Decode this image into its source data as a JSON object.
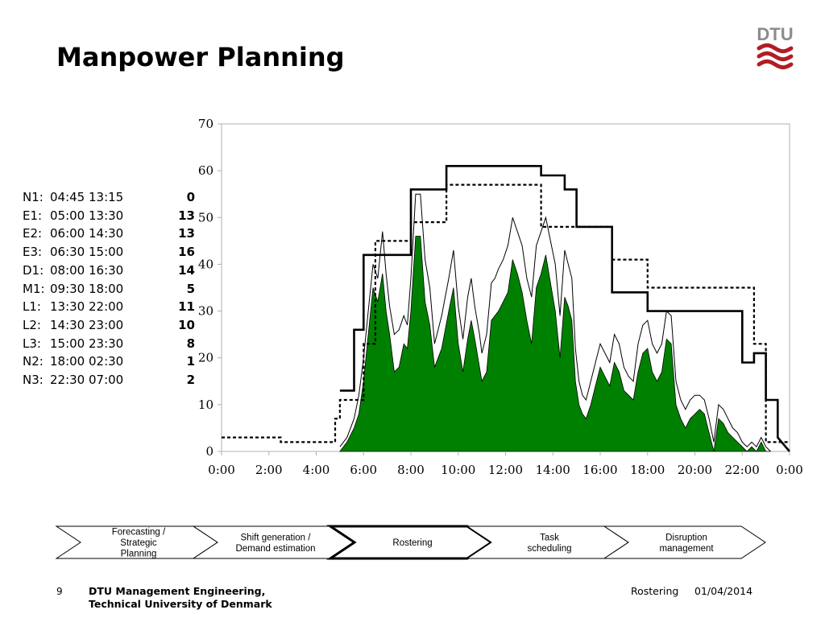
{
  "slide": {
    "title": "Manpower Planning",
    "logo_text": "DTU",
    "colors": {
      "logo_red": "#b01e24",
      "logo_grey": "#8c8c8c",
      "area_fill": "#008000",
      "step_border": "#000000"
    }
  },
  "shifts": [
    {
      "label": "N1:",
      "time": "04:45 13:15",
      "count": "0"
    },
    {
      "label": "E1:",
      "time": "05:00 13:30",
      "count": "13"
    },
    {
      "label": "E2:",
      "time": "06:00 14:30",
      "count": "13"
    },
    {
      "label": "E3:",
      "time": "06:30 15:00",
      "count": "16"
    },
    {
      "label": "D1:",
      "time": "08:00 16:30",
      "count": "14"
    },
    {
      "label": "M1:",
      "time": "09:30 18:00",
      "count": "5"
    },
    {
      "label": "L1:",
      "time": "13:30 22:00",
      "count": "11"
    },
    {
      "label": "L2:",
      "time": "14:30 23:00",
      "count": "10"
    },
    {
      "label": "L3:",
      "time": "15:00 23:30",
      "count": "8"
    },
    {
      "label": "N2:",
      "time": "18:00 02:30",
      "count": "1"
    },
    {
      "label": "N3:",
      "time": "22:30 07:00",
      "count": "2"
    }
  ],
  "chart_data": {
    "type": "area",
    "title": "",
    "xlabel": "",
    "ylabel": "",
    "xlim": [
      0,
      24
    ],
    "ylim": [
      0,
      70
    ],
    "yticks": [
      0,
      10,
      20,
      30,
      40,
      50,
      60,
      70
    ],
    "xtick_values": [
      0,
      2,
      4,
      6,
      8,
      10,
      12,
      14,
      16,
      18,
      20,
      22,
      24
    ],
    "xtick_labels": [
      "0:00",
      "2:00",
      "4:00",
      "6:00",
      "8:00",
      "10:00",
      "12:00",
      "14:00",
      "16:00",
      "18:00",
      "20:00",
      "22:00",
      "0:00"
    ],
    "grid": false,
    "legend": "none",
    "series": [
      {
        "style": "area-green",
        "x": [
          5.0,
          5.3,
          5.6,
          5.8,
          6.0,
          6.2,
          6.4,
          6.6,
          6.8,
          6.95,
          7.1,
          7.3,
          7.5,
          7.7,
          7.85,
          8.0,
          8.2,
          8.4,
          8.6,
          8.8,
          9.0,
          9.3,
          9.6,
          9.8,
          10.0,
          10.2,
          10.4,
          10.55,
          10.7,
          10.9,
          11.0,
          11.2,
          11.4,
          11.55,
          11.7,
          11.9,
          12.1,
          12.3,
          12.5,
          12.7,
          12.9,
          13.1,
          13.3,
          13.5,
          13.7,
          13.9,
          14.1,
          14.3,
          14.5,
          14.65,
          14.8,
          14.95,
          15.1,
          15.25,
          15.4,
          15.6,
          15.8,
          16.0,
          16.2,
          16.4,
          16.6,
          16.8,
          17.0,
          17.2,
          17.4,
          17.6,
          17.8,
          18.0,
          18.2,
          18.4,
          18.6,
          18.8,
          19.0,
          19.2,
          19.4,
          19.6,
          19.8,
          20.0,
          20.2,
          20.4,
          20.6,
          20.8,
          21.0,
          21.2,
          21.4,
          21.6,
          21.8,
          22.0,
          22.2,
          22.4,
          22.6,
          22.8,
          23.0,
          23.2
        ],
        "y": [
          0,
          2,
          5,
          8,
          15,
          25,
          35,
          32,
          38,
          30,
          25,
          17,
          18,
          23,
          22,
          30,
          46,
          46,
          32,
          27,
          18,
          22,
          30,
          35,
          23,
          17,
          24,
          28,
          24,
          18,
          15,
          17,
          28,
          29,
          30,
          32,
          34,
          41,
          38,
          34,
          28,
          23,
          35,
          38,
          42,
          36,
          30,
          20,
          33,
          31,
          28,
          15,
          10,
          8,
          7,
          10,
          14,
          18,
          16,
          14,
          19,
          17,
          13,
          12,
          11,
          17,
          21,
          22,
          17,
          15,
          17,
          24,
          23,
          10,
          7,
          5,
          7,
          8,
          9,
          8,
          4,
          0,
          7,
          6,
          4,
          3,
          2,
          1,
          0,
          1,
          0,
          2,
          0,
          0
        ],
        "note": ""
      },
      {
        "style": "thin-line",
        "x": [
          5.0,
          5.3,
          5.6,
          5.8,
          6.0,
          6.2,
          6.4,
          6.6,
          6.8,
          6.95,
          7.1,
          7.3,
          7.5,
          7.7,
          7.85,
          8.0,
          8.2,
          8.4,
          8.6,
          8.8,
          9.0,
          9.3,
          9.6,
          9.8,
          10.0,
          10.2,
          10.4,
          10.55,
          10.7,
          10.9,
          11.0,
          11.2,
          11.4,
          11.55,
          11.7,
          11.9,
          12.1,
          12.3,
          12.5,
          12.7,
          12.9,
          13.1,
          13.3,
          13.5,
          13.7,
          13.9,
          14.1,
          14.3,
          14.5,
          14.65,
          14.8,
          14.95,
          15.1,
          15.25,
          15.4,
          15.6,
          15.8,
          16.0,
          16.2,
          16.4,
          16.6,
          16.8,
          17.0,
          17.2,
          17.4,
          17.6,
          17.8,
          18.0,
          18.2,
          18.4,
          18.6,
          18.8,
          19.0,
          19.2,
          19.4,
          19.6,
          19.8,
          20.0,
          20.2,
          20.4,
          20.6,
          20.8,
          21.0,
          21.2,
          21.4,
          21.6,
          21.8,
          22.0,
          22.2,
          22.4,
          22.6,
          22.8,
          23.0,
          23.2
        ],
        "y": [
          1,
          3,
          7,
          12,
          20,
          30,
          40,
          37,
          47,
          38,
          31,
          25,
          26,
          29,
          27,
          37,
          55,
          55,
          41,
          35,
          23,
          29,
          37,
          43,
          31,
          24,
          33,
          37,
          31,
          25,
          21,
          25,
          36,
          37,
          39,
          41,
          44,
          50,
          47,
          44,
          37,
          33,
          44,
          47,
          50,
          45,
          40,
          29,
          43,
          40,
          37,
          22,
          15,
          12,
          11,
          15,
          19,
          23,
          21,
          19,
          25,
          23,
          18,
          16,
          15,
          23,
          27,
          28,
          23,
          21,
          23,
          30,
          29,
          15,
          11,
          9,
          11,
          12,
          12,
          11,
          7,
          2,
          10,
          9,
          7,
          5,
          4,
          2,
          1,
          2,
          1,
          3,
          1,
          0
        ],
        "note": ""
      },
      {
        "style": "thick-step",
        "x": [
          5.0,
          5.6,
          5.6,
          6.0,
          6.0,
          6.5,
          6.5,
          8.0,
          8.0,
          9.5,
          9.5,
          13.5,
          13.5,
          14.5,
          14.5,
          15.0,
          15.0,
          16.5,
          16.5,
          18.0,
          18.0,
          22.0,
          22.0,
          22.5,
          22.5,
          23.0,
          23.0,
          23.5,
          23.5,
          24.0
        ],
        "y": [
          13,
          13,
          26,
          26,
          42,
          42,
          42,
          42,
          56,
          56,
          61,
          61,
          59,
          59,
          56,
          56,
          48,
          48,
          34,
          34,
          30,
          30,
          19,
          19,
          21,
          21,
          11,
          11,
          3,
          0
        ],
        "note": ""
      },
      {
        "style": "dashed-step",
        "x": [
          0.0,
          2.5,
          2.5,
          4.8,
          4.8,
          5.0,
          5.0,
          6.0,
          6.0,
          6.5,
          6.5,
          8.0,
          8.0,
          9.5,
          9.5,
          13.5,
          13.5,
          16.5,
          16.5,
          18.0,
          18.0,
          22.5,
          22.5,
          23.0,
          23.0,
          24.0
        ],
        "y": [
          3,
          3,
          2,
          2,
          7,
          7,
          11,
          11,
          23,
          23,
          45,
          45,
          49,
          49,
          57,
          57,
          48,
          48,
          41,
          41,
          35,
          35,
          23,
          23,
          2,
          2
        ],
        "note": ""
      }
    ]
  },
  "process_steps": [
    {
      "lines": [
        "Forecasting /",
        "Strategic",
        "Planning"
      ],
      "active": false
    },
    {
      "lines": [
        "Shift generation /",
        "Demand estimation"
      ],
      "active": false
    },
    {
      "lines": [
        "Rostering"
      ],
      "active": true
    },
    {
      "lines": [
        "Task",
        "scheduling"
      ],
      "active": false
    },
    {
      "lines": [
        "Disruption",
        "management"
      ],
      "active": false
    }
  ],
  "footer": {
    "page_number": "9",
    "org_line1": "DTU Management Engineering,",
    "org_line2": "Technical University of Denmark",
    "topic": "Rostering",
    "date": "01/04/2014"
  }
}
